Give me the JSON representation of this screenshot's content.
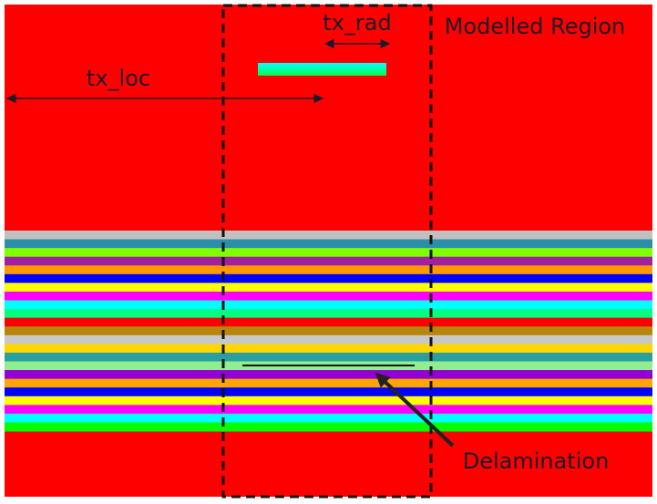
{
  "annotations": {
    "tx_rad": "tx_rad",
    "modelled_region": "Modelled Region",
    "tx_loc": "tx_loc",
    "delamination": "Delamination"
  }
}
